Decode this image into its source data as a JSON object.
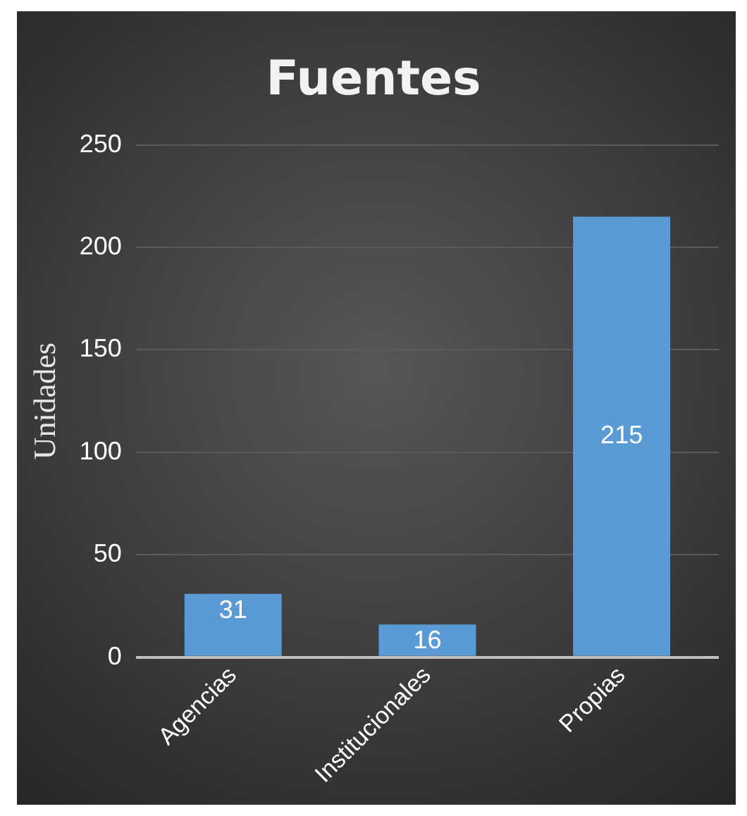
{
  "chart_data": {
    "type": "bar",
    "title": "Fuentes",
    "ylabel": "Unidades",
    "categories": [
      "Agencias",
      "Institucionales",
      "Propias"
    ],
    "values": [
      31,
      16,
      215
    ],
    "color": "#5b9bd5",
    "ylim": [
      0,
      250
    ],
    "yticks": [
      0,
      50,
      100,
      150,
      200,
      250
    ],
    "grid": "y",
    "data_labels": true,
    "legend": false
  }
}
